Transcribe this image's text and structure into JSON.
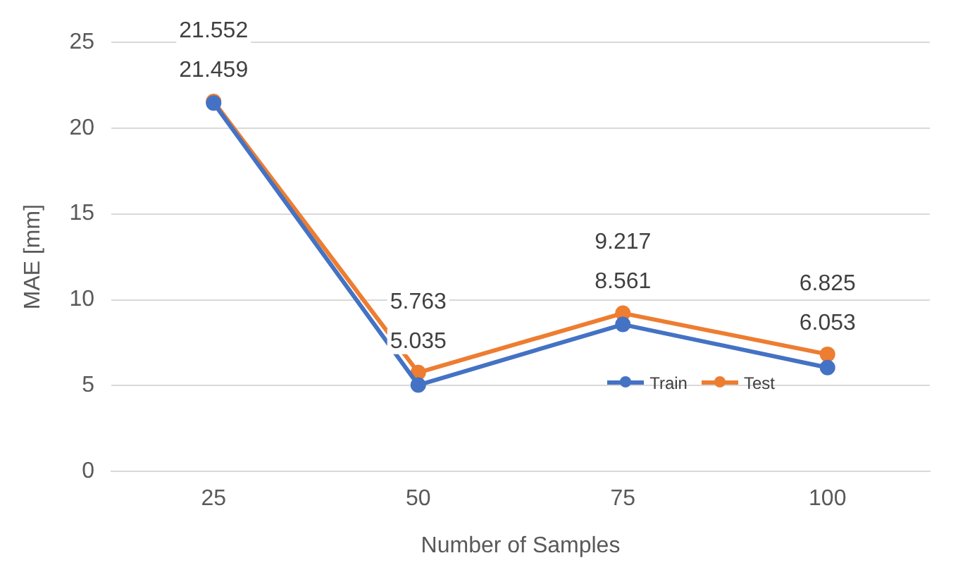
{
  "chart_data": {
    "type": "line",
    "xlabel": "Number of Samples",
    "ylabel": "MAE [mm]",
    "categories": [
      "25",
      "50",
      "75",
      "100"
    ],
    "series": [
      {
        "name": "Train",
        "color": "#4472c4",
        "values": [
          21.459,
          5.035,
          8.561,
          6.053
        ]
      },
      {
        "name": "Test",
        "color": "#ed7d31",
        "values": [
          21.552,
          5.763,
          9.217,
          6.825
        ]
      }
    ],
    "ylim": [
      0,
      25
    ],
    "yticks": [
      0,
      5,
      10,
      15,
      20,
      25
    ],
    "grid": "y",
    "legend": "bottom right",
    "marker": "circle",
    "line_style": "solid",
    "data_labels": true
  }
}
